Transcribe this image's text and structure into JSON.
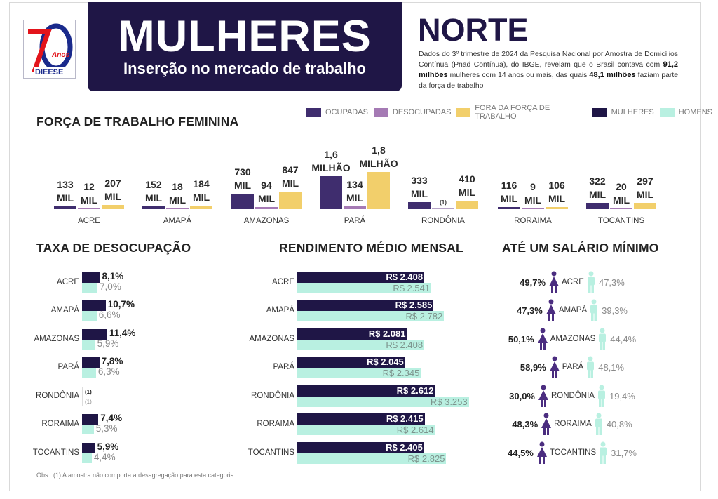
{
  "logo": {
    "text": "70 Anos DIEESE",
    "colors": {
      "red": "#e3141b",
      "blue": "#1a2a8c"
    }
  },
  "header": {
    "title": "MULHERES",
    "subtitle": "Inserção no mercado de trabalho"
  },
  "region": "NORTE",
  "intro": {
    "text1": "Dados do 3º trimestre de 2024 da Pesquisa Nacional por Amostra de Domicílios Contínua (Pnad Contínua), do IBGE, revelam que o Brasil contava com ",
    "bold1": "91,2 milhões",
    "text2": " mulheres com 14 anos ou mais, das quais ",
    "bold2": "48,1 milhões",
    "text3": " faziam parte da força de trabalho"
  },
  "legend": [
    {
      "label": "OCUPADAS",
      "color": "#3f2d6e"
    },
    {
      "label": "DESOCUPADAS",
      "color": "#a57ab4"
    },
    {
      "label": "FORA DA FORÇA DE TRABALHO",
      "color": "#f2cf6b"
    },
    {
      "label": "MULHERES",
      "color": "#1f1646"
    },
    {
      "label": "HOMENS",
      "color": "#b9f0e1"
    }
  ],
  "sections": {
    "forca": "FORÇA DE TRABALHO FEMININA",
    "taxa": "TAXA DE DESOCUPAÇÃO",
    "rendimento": "RENDIMENTO MÉDIO MENSAL",
    "salario": "ATÉ UM SALÁRIO MÍNIMO"
  },
  "note": "Obs.: (1) A amostra não comporta a desagregação para esta categoria",
  "chart_data": [
    {
      "type": "bar",
      "title": "FORÇA DE TRABALHO FEMININA",
      "unit": "mil",
      "categories": [
        "ACRE",
        "AMAPÁ",
        "AMAZONAS",
        "PARÁ",
        "RONDÔNIA",
        "RORAIMA",
        "TOCANTINS"
      ],
      "series": [
        {
          "name": "OCUPADAS",
          "color": "#3f2d6e",
          "values": [
            133,
            152,
            730,
            1600,
            333,
            116,
            322
          ],
          "labels": [
            [
              "133",
              "MIL"
            ],
            [
              "152",
              "MIL"
            ],
            [
              "730",
              "MIL"
            ],
            [
              "1,6",
              "MILHÃO"
            ],
            [
              "333",
              "MIL"
            ],
            [
              "116",
              "MIL"
            ],
            [
              "322",
              "MIL"
            ]
          ]
        },
        {
          "name": "DESOCUPADAS",
          "color": "#a57ab4",
          "values": [
            12,
            18,
            94,
            134,
            null,
            9,
            20
          ],
          "labels": [
            [
              "12",
              "MIL"
            ],
            [
              "18",
              "MIL"
            ],
            [
              "94",
              "MIL"
            ],
            [
              "134",
              "MIL"
            ],
            [
              "",
              "(1)"
            ],
            [
              "9",
              "MIL"
            ],
            [
              "20",
              "MIL"
            ]
          ]
        },
        {
          "name": "FORA DA FORÇA DE TRABALHO",
          "color": "#f2cf6b",
          "values": [
            207,
            184,
            847,
            1800,
            410,
            106,
            297
          ],
          "labels": [
            [
              "207",
              "MIL"
            ],
            [
              "184",
              "MIL"
            ],
            [
              "847",
              "MIL"
            ],
            [
              "1,8",
              "MILHÃO"
            ],
            [
              "410",
              "MIL"
            ],
            [
              "106",
              "MIL"
            ],
            [
              "297",
              "MIL"
            ]
          ]
        }
      ]
    },
    {
      "type": "bar",
      "title": "TAXA DE DESOCUPAÇÃO",
      "unit": "%",
      "categories": [
        "ACRE",
        "AMAPÁ",
        "AMAZONAS",
        "PARÁ",
        "RONDÔNIA",
        "RORAIMA",
        "TOCANTINS"
      ],
      "series": [
        {
          "name": "MULHERES",
          "color": "#1f1646",
          "values": [
            8.1,
            10.7,
            11.4,
            7.8,
            null,
            7.4,
            5.9
          ],
          "labels": [
            "8,1%",
            "10,7%",
            "11,4%",
            "7,8%",
            "(1)",
            "7,4%",
            "5,9%"
          ]
        },
        {
          "name": "HOMENS",
          "color": "#b9f0e1",
          "values": [
            7.0,
            6.6,
            5.9,
            6.3,
            null,
            5.3,
            4.4
          ],
          "labels": [
            "7,0%",
            "6,6%",
            "5,9%",
            "6,3%",
            "(1)",
            "5,3%",
            "4,4%"
          ]
        }
      ]
    },
    {
      "type": "bar",
      "title": "RENDIMENTO MÉDIO MENSAL",
      "unit": "R$",
      "categories": [
        "ACRE",
        "AMAPÁ",
        "AMAZONAS",
        "PARÁ",
        "RONDÔNIA",
        "RORAIMA",
        "TOCANTINS"
      ],
      "series": [
        {
          "name": "MULHERES",
          "color": "#1f1646",
          "values": [
            2408,
            2585,
            2081,
            2045,
            2612,
            2415,
            2405
          ],
          "labels": [
            "R$ 2.408",
            "R$ 2.585",
            "R$ 2.081",
            "R$ 2.045",
            "R$ 2.612",
            "R$ 2.415",
            "R$ 2.405"
          ]
        },
        {
          "name": "HOMENS",
          "color": "#b9f0e1",
          "values": [
            2541,
            2782,
            2408,
            2345,
            3253,
            2614,
            2825
          ],
          "labels": [
            "R$ 2.541",
            "R$ 2.782",
            "R$ 2.408",
            "R$ 2.345",
            "R$ 3.253",
            "R$ 2.614",
            "R$ 2.825"
          ]
        }
      ]
    },
    {
      "type": "table",
      "title": "ATÉ UM SALÁRIO MÍNIMO",
      "unit": "%",
      "categories": [
        "ACRE",
        "AMAPÁ",
        "AMAZONAS",
        "PARÁ",
        "RONDÔNIA",
        "RORAIMA",
        "TOCANTINS"
      ],
      "series": [
        {
          "name": "MULHERES",
          "color": "#4b2d80",
          "values": [
            49.7,
            47.3,
            50.1,
            58.9,
            30.0,
            48.3,
            44.5
          ],
          "labels": [
            "49,7%",
            "47,3%",
            "50,1%",
            "58,9%",
            "30,0%",
            "48,3%",
            "44,5%"
          ]
        },
        {
          "name": "HOMENS",
          "color": "#b9f0e1",
          "values": [
            47.3,
            39.3,
            44.4,
            48.1,
            19.4,
            40.8,
            31.7
          ],
          "labels": [
            "47,3%",
            "39,3%",
            "44,4%",
            "48,1%",
            "19,4%",
            "40,8%",
            "31,7%"
          ]
        }
      ]
    }
  ]
}
